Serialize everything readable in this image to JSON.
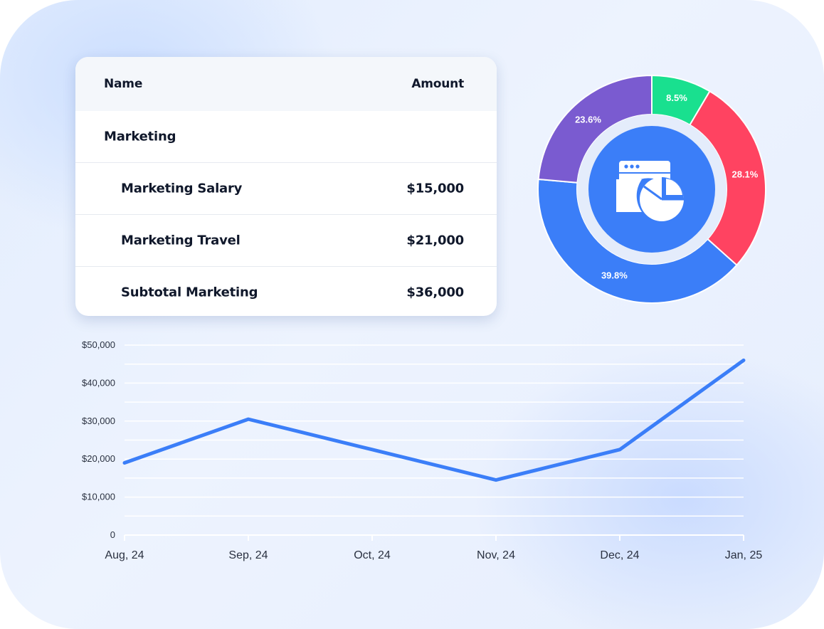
{
  "table": {
    "headers": {
      "name": "Name",
      "amount": "Amount"
    },
    "rows": [
      {
        "label": "Marketing",
        "amount": ""
      },
      {
        "label": "Marketing Salary",
        "amount": "$15,000"
      },
      {
        "label": "Marketing Travel",
        "amount": "$21,000"
      },
      {
        "label": "Subtotal Marketing",
        "amount": "$36,000"
      }
    ]
  },
  "donut": {
    "center_icon": "browser-window-pie-chart-icon",
    "segments": [
      {
        "label": "8.5%",
        "value": 8.5,
        "color": "#19e08f"
      },
      {
        "label": "28.1%",
        "value": 28.1,
        "color": "#ff4361"
      },
      {
        "label": "39.8%",
        "value": 39.8,
        "color": "#3b7ef8"
      },
      {
        "label": "23.6%",
        "value": 23.6,
        "color": "#7a5bd0"
      }
    ]
  },
  "chart_data": {
    "type": "line",
    "categories": [
      "Aug, 24",
      "Sep, 24",
      "Oct, 24",
      "Nov, 24",
      "Dec, 24",
      "Jan, 25"
    ],
    "series": [
      {
        "values": [
          19000,
          30500,
          22500,
          14500,
          22500,
          46000
        ],
        "color": "#3b7ef8"
      }
    ],
    "yticks": [
      "0",
      "$10,000",
      "$20,000",
      "$30,000",
      "$40,000",
      "$50,000"
    ],
    "ylim": [
      0,
      50000
    ],
    "grid": true,
    "title": "",
    "xlabel": "",
    "ylabel": ""
  }
}
